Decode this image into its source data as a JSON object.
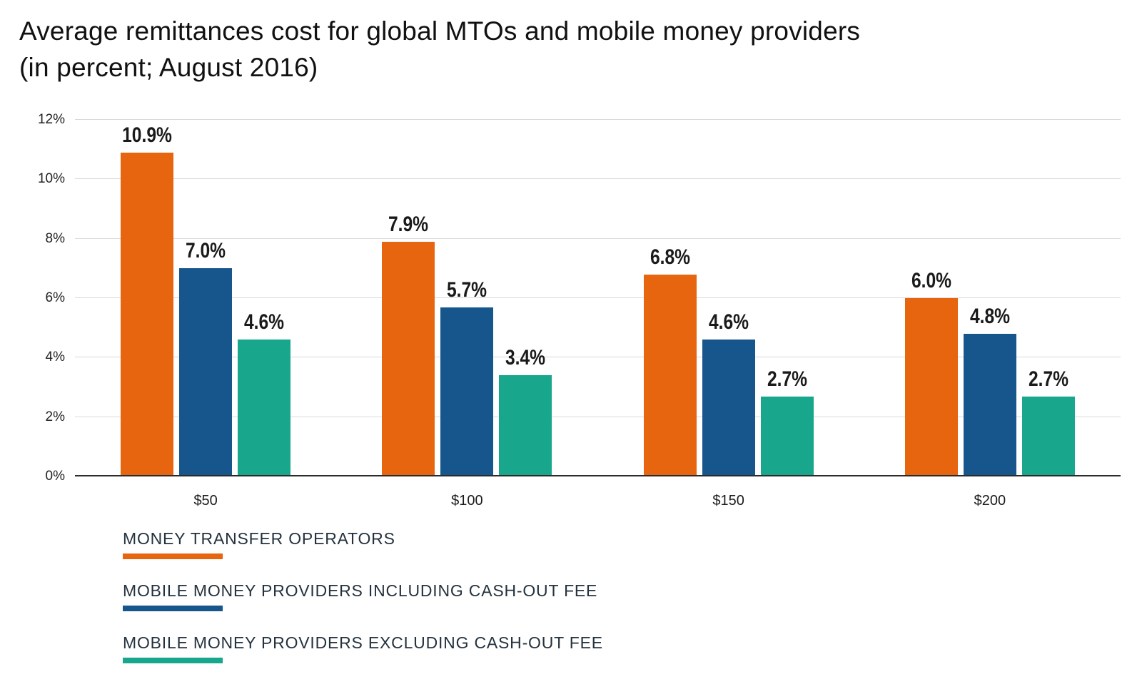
{
  "title": "Average remittances cost for global MTOs and mobile money providers\n(in percent; August 2016)",
  "chart_data": {
    "type": "bar",
    "title": "Average remittances cost for global MTOs and mobile money providers (in percent; August 2016)",
    "categories": [
      "$50",
      "$100",
      "$150",
      "$200"
    ],
    "series": [
      {
        "name": "MONEY TRANSFER OPERATORS",
        "color": "#E8650F",
        "values": [
          10.9,
          7.9,
          6.8,
          6.0
        ],
        "labels": [
          "10.9%",
          "7.9%",
          "6.8%",
          "6.0%"
        ]
      },
      {
        "name": "MOBILE MONEY PROVIDERS INCLUDING CASH-OUT FEE",
        "color": "#17568C",
        "values": [
          7.0,
          5.7,
          4.6,
          4.8
        ],
        "labels": [
          "7.0%",
          "5.7%",
          "4.6%",
          "4.8%"
        ]
      },
      {
        "name": "MOBILE MONEY PROVIDERS EXCLUDING CASH-OUT FEE",
        "color": "#18A78C",
        "values": [
          4.6,
          3.4,
          2.7,
          2.7
        ],
        "labels": [
          "4.6%",
          "3.4%",
          "2.7%",
          "2.7%"
        ]
      }
    ],
    "xlabel": "",
    "ylabel": "",
    "ylim": [
      0,
      12
    ],
    "yticks": [
      0,
      2,
      4,
      6,
      8,
      10,
      12
    ],
    "ytick_labels": [
      "0%",
      "2%",
      "4%",
      "6%",
      "8%",
      "10%",
      "12%"
    ],
    "grid": true,
    "legend_position": "bottom"
  }
}
